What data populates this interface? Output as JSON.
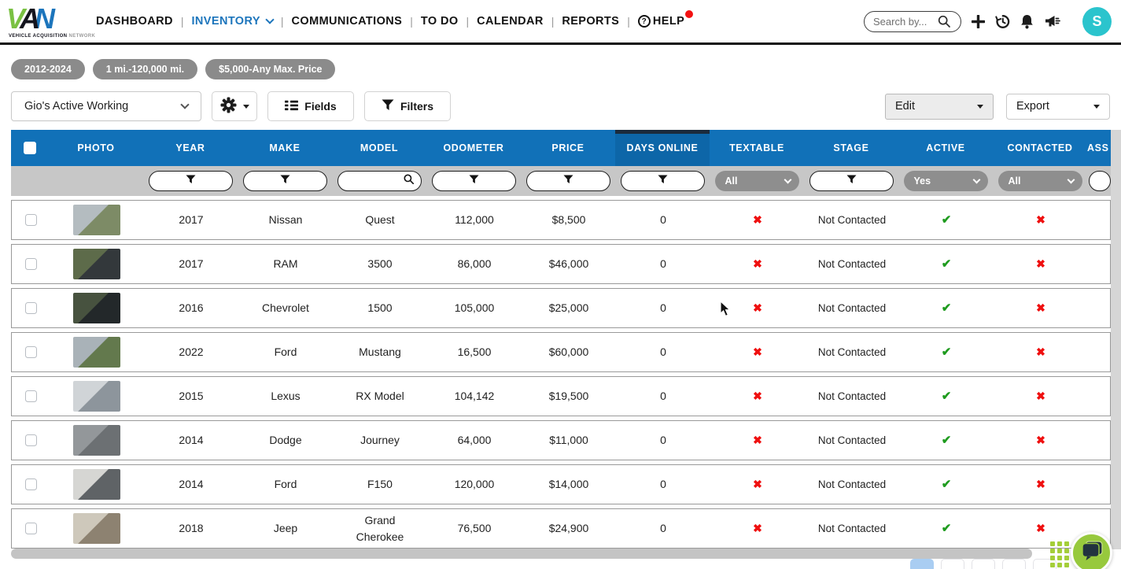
{
  "nav": {
    "logo": {
      "v": "V",
      "a": "A",
      "n": "N",
      "tagline_bold": "VEHICLE ACQUISITION",
      "tagline_light": "NETWORK"
    },
    "items": [
      {
        "id": "dashboard",
        "label": "DASHBOARD",
        "active": false
      },
      {
        "id": "inventory",
        "label": "INVENTORY",
        "active": true,
        "has_dropdown": true
      },
      {
        "id": "communications",
        "label": "COMMUNICATIONS",
        "active": false
      },
      {
        "id": "todo",
        "label": "TO DO",
        "active": false
      },
      {
        "id": "calendar",
        "label": "CALENDAR",
        "active": false
      },
      {
        "id": "reports",
        "label": "REPORTS",
        "active": false
      },
      {
        "id": "help",
        "label": "HELP",
        "active": false,
        "question_icon": true,
        "notification_dot": true
      }
    ],
    "search": {
      "placeholder": "Search by..."
    },
    "avatar": {
      "initial": "S",
      "color": "#2bc4cd"
    }
  },
  "chips": [
    "2012-2024",
    "1 mi.-120,000 mi.",
    "$5,000-Any Max. Price"
  ],
  "toolbar": {
    "view_select_value": "Gio's Active Working",
    "fields_label": "Fields",
    "filters_label": "Filters",
    "edit_label": "Edit",
    "export_label": "Export"
  },
  "table": {
    "columns": [
      {
        "key": "select",
        "label": ""
      },
      {
        "key": "photo",
        "label": "PHOTO"
      },
      {
        "key": "year",
        "label": "YEAR"
      },
      {
        "key": "make",
        "label": "MAKE"
      },
      {
        "key": "model",
        "label": "MODEL"
      },
      {
        "key": "odometer",
        "label": "ODOMETER"
      },
      {
        "key": "price",
        "label": "PRICE"
      },
      {
        "key": "days_online",
        "label": "DAYS ONLINE",
        "sorted": true
      },
      {
        "key": "textable",
        "label": "TEXTABLE"
      },
      {
        "key": "stage",
        "label": "STAGE"
      },
      {
        "key": "active",
        "label": "ACTIVE"
      },
      {
        "key": "contacted",
        "label": "CONTACTED"
      },
      {
        "key": "assigned",
        "label": "ASS"
      }
    ],
    "filters": {
      "year": {
        "type": "funnel"
      },
      "make": {
        "type": "funnel"
      },
      "model": {
        "type": "search"
      },
      "odometer": {
        "type": "funnel"
      },
      "price": {
        "type": "funnel"
      },
      "days_online": {
        "type": "funnel"
      },
      "textable": {
        "type": "select",
        "value": "All"
      },
      "stage": {
        "type": "funnel"
      },
      "active": {
        "type": "select",
        "value": "Yes"
      },
      "contacted": {
        "type": "select",
        "value": "All"
      },
      "assigned": {
        "type": "partial"
      }
    },
    "rows": [
      {
        "year": "2017",
        "make": "Nissan",
        "model": "Quest",
        "odometer": "112,000",
        "price": "$8,500",
        "days_online": "0",
        "textable": false,
        "stage": "Not Contacted",
        "active": true,
        "contacted": false,
        "photo": {
          "desc": "silver minivan in driveway",
          "c1": "#b4bcc0",
          "c2": "#7d8b66"
        }
      },
      {
        "year": "2017",
        "make": "RAM",
        "model": "3500",
        "odometer": "86,000",
        "price": "$46,000",
        "days_online": "0",
        "textable": false,
        "stage": "Not Contacted",
        "active": true,
        "contacted": false,
        "photo": {
          "desc": "dark pickup truck under trees",
          "c1": "#5d6b4a",
          "c2": "#33383b"
        }
      },
      {
        "year": "2016",
        "make": "Chevrolet",
        "model": "1500",
        "odometer": "105,000",
        "price": "$25,000",
        "days_online": "0",
        "textable": false,
        "stage": "Not Contacted",
        "active": true,
        "contacted": false,
        "photo": {
          "desc": "black lifted truck by house",
          "c1": "#47523f",
          "c2": "#23282a"
        }
      },
      {
        "year": "2022",
        "make": "Ford",
        "model": "Mustang",
        "odometer": "16,500",
        "price": "$60,000",
        "days_online": "0",
        "textable": false,
        "stage": "Not Contacted",
        "active": true,
        "contacted": false,
        "photo": {
          "desc": "silver mustang on street",
          "c1": "#a9b2b8",
          "c2": "#63794d"
        }
      },
      {
        "year": "2015",
        "make": "Lexus",
        "model": "RX Model",
        "odometer": "104,142",
        "price": "$19,500",
        "days_online": "0",
        "textable": false,
        "stage": "Not Contacted",
        "active": true,
        "contacted": false,
        "photo": {
          "desc": "silver lexus suv",
          "c1": "#d0d4d7",
          "c2": "#8d959c"
        }
      },
      {
        "year": "2014",
        "make": "Dodge",
        "model": "Journey",
        "odometer": "64,000",
        "price": "$11,000",
        "days_online": "0",
        "textable": false,
        "stage": "Not Contacted",
        "active": true,
        "contacted": false,
        "photo": {
          "desc": "gray blurry photo",
          "c1": "#93979a",
          "c2": "#6c7073"
        }
      },
      {
        "year": "2014",
        "make": "Ford",
        "model": "F150",
        "odometer": "120,000",
        "price": "$14,000",
        "days_online": "0",
        "textable": false,
        "stage": "Not Contacted",
        "active": true,
        "contacted": false,
        "photo": {
          "desc": "white truck in garage",
          "c1": "#d6d6d3",
          "c2": "#5f6366"
        }
      },
      {
        "year": "2018",
        "make": "Jeep",
        "model": "Grand Cherokee",
        "odometer": "76,500",
        "price": "$24,900",
        "days_online": "0",
        "textable": false,
        "stage": "Not Contacted",
        "active": true,
        "contacted": false,
        "photo": {
          "desc": "white jeep tilted",
          "c1": "#cec8bb",
          "c2": "#8d8271"
        }
      }
    ]
  },
  "pagination": {
    "pages": 5,
    "active_index": 0
  },
  "colors": {
    "header_blue": "#1171b8",
    "sorted_blue": "#0d66a8",
    "sort_bar": "#1b2b3c",
    "nav_active_blue": "#1c75bc",
    "logo_green": "#7ac143",
    "chip_gray": "#8b8b8b",
    "check_green": "#1e9b1e",
    "x_red": "#ef0f0f",
    "avatar_teal": "#2bc4cd",
    "chat_lime": "#97c93d",
    "page_active": "#a9cdf2"
  }
}
